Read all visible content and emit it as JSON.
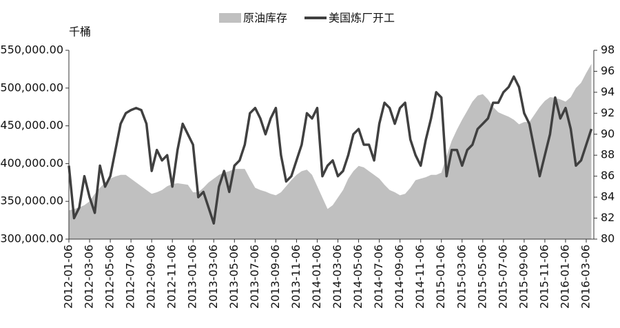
{
  "chart_data": {
    "type": "area-line",
    "ylabel": "千桶",
    "categories": [
      "2012-01-06",
      null,
      null,
      null,
      "2012-03-06",
      null,
      null,
      null,
      "2012-05-06",
      null,
      null,
      null,
      "2012-07-06",
      null,
      null,
      null,
      "2012-09-06",
      null,
      null,
      null,
      "2012-11-06",
      null,
      null,
      null,
      "2013-01-06",
      null,
      null,
      null,
      "2013-03-06",
      null,
      null,
      null,
      "2013-05-06",
      null,
      null,
      null,
      "2013-07-06",
      null,
      null,
      null,
      "2013-09-06",
      null,
      null,
      null,
      "2013-11-06",
      null,
      null,
      null,
      "2014-01-06",
      null,
      null,
      null,
      "2014-03-06",
      null,
      null,
      null,
      "2014-05-06",
      null,
      null,
      null,
      "2014-07-06",
      null,
      null,
      null,
      "2014-09-06",
      null,
      null,
      null,
      "2014-11-06",
      null,
      null,
      null,
      "2015-01-06",
      null,
      null,
      null,
      "2015-03-06",
      null,
      null,
      null,
      "2015-05-06",
      null,
      null,
      null,
      "2015-07-06",
      null,
      null,
      null,
      "2015-09-06",
      null,
      null,
      null,
      "2015-11-06",
      null,
      null,
      null,
      "2016-01-06",
      null,
      null,
      null,
      "2016-03-06",
      null
    ],
    "series": [
      {
        "name": "原油库存",
        "kind": "area",
        "axis": "y",
        "color": "#c0c0c0",
        "values": [
          338000,
          340000,
          342000,
          345000,
          350000,
          360000,
          368000,
          375000,
          380000,
          383000,
          385000,
          385000,
          380000,
          375000,
          370000,
          365000,
          360000,
          362000,
          365000,
          370000,
          373000,
          374000,
          373000,
          372000,
          362000,
          362000,
          368000,
          375000,
          380000,
          385000,
          388000,
          390000,
          393000,
          393000,
          393000,
          380000,
          368000,
          365000,
          363000,
          360000,
          358000,
          362000,
          370000,
          378000,
          385000,
          390000,
          392000,
          385000,
          370000,
          355000,
          340000,
          345000,
          355000,
          365000,
          380000,
          390000,
          397000,
          395000,
          390000,
          385000,
          380000,
          372000,
          365000,
          362000,
          358000,
          360000,
          368000,
          378000,
          380000,
          382000,
          385000,
          385000,
          388000,
          410000,
          430000,
          445000,
          458000,
          470000,
          482000,
          490000,
          492000,
          485000,
          475000,
          468000,
          465000,
          462000,
          458000,
          452000,
          455000,
          455000,
          465000,
          475000,
          483000,
          488000,
          487000,
          485000,
          482000,
          488000,
          500000,
          507000,
          520000,
          532000
        ]
      },
      {
        "name": "美国炼厂开工",
        "kind": "line",
        "axis": "y2",
        "color": "#404040",
        "values": [
          87,
          82,
          83,
          86,
          84,
          82.5,
          87,
          85,
          86,
          88.5,
          91,
          92,
          92.3,
          92.5,
          92.3,
          91,
          86.5,
          88.5,
          87.5,
          88,
          85,
          88.5,
          91,
          90,
          89,
          84,
          84.5,
          83,
          81.5,
          85,
          86.5,
          84.5,
          87,
          87.5,
          89,
          92,
          92.5,
          91.5,
          90,
          91.5,
          92.5,
          88,
          85.5,
          86,
          87.5,
          89,
          92,
          91.5,
          92.5,
          86,
          87,
          87.5,
          86,
          86.5,
          88,
          90,
          90.5,
          89,
          89,
          87.5,
          91,
          93,
          92.5,
          91,
          92.5,
          93,
          89.5,
          88,
          87,
          89.5,
          91.5,
          94,
          93.5,
          86,
          88.5,
          88.5,
          87,
          88.5,
          89,
          90.5,
          91,
          91.5,
          93,
          93,
          94,
          94.5,
          95.5,
          94.5,
          92,
          91,
          88.5,
          86,
          88,
          90,
          93.5,
          91.5,
          92.5,
          90.5,
          87,
          87.5,
          89,
          90.5
        ]
      }
    ],
    "ylim": [
      300000,
      550000
    ],
    "yticks": [
      {
        "value": 300000,
        "label": "300,000.00"
      },
      {
        "value": 350000,
        "label": "350,000.00"
      },
      {
        "value": 400000,
        "label": "400,000.00"
      },
      {
        "value": 450000,
        "label": "450,000.00"
      },
      {
        "value": 500000,
        "label": "500,000.00"
      },
      {
        "value": 550000,
        "label": "550,000.00"
      }
    ],
    "y2lim": [
      80,
      98
    ],
    "y2ticks": [
      80,
      82,
      84,
      86,
      88,
      90,
      92,
      94,
      96,
      98
    ],
    "legend": "top"
  }
}
